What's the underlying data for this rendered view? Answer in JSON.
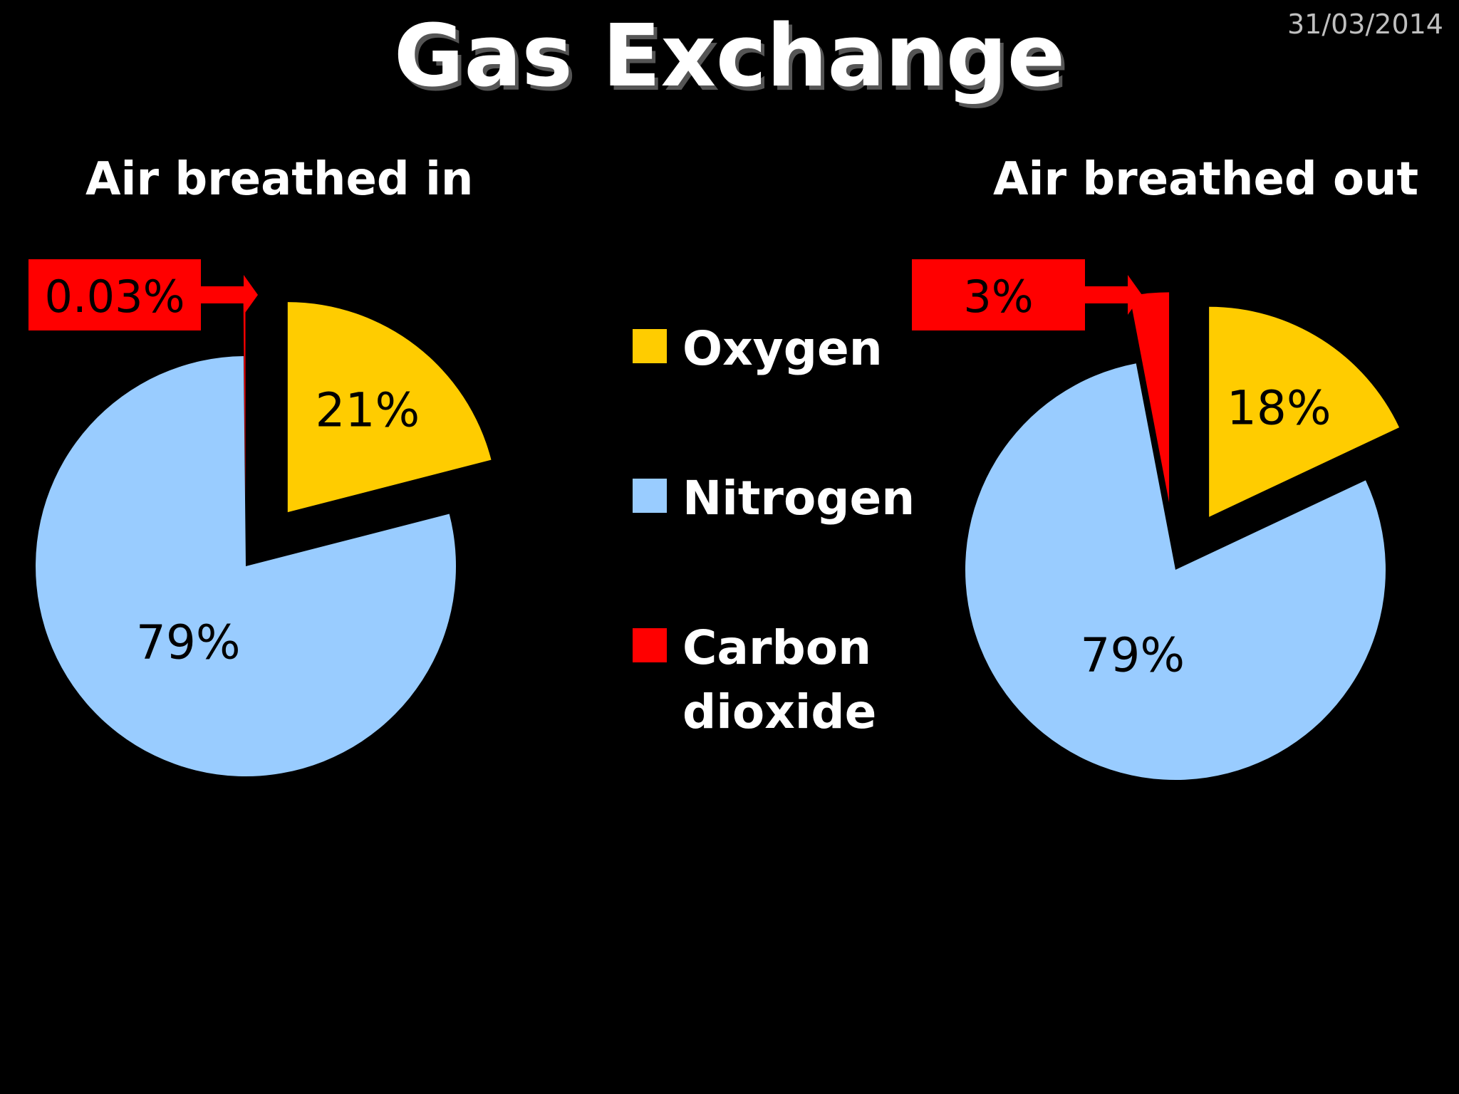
{
  "slide": {
    "title": "Gas Exchange",
    "date": "31/03/2014"
  },
  "chart_data": [
    {
      "type": "pie",
      "title": "Air breathed in",
      "slices": [
        {
          "name": "Oxygen",
          "value": 21,
          "label": "21%",
          "color": "#ffcc00"
        },
        {
          "name": "Nitrogen",
          "value": 79,
          "label": "79%",
          "color": "#99ccff"
        },
        {
          "name": "Carbon dioxide",
          "value": 0.03,
          "label": "0.03%",
          "color": "#ff0000"
        }
      ],
      "callout": {
        "label": "0.03%",
        "slice": "Carbon dioxide"
      }
    },
    {
      "type": "pie",
      "title": "Air breathed out",
      "slices": [
        {
          "name": "Oxygen",
          "value": 18,
          "label": "18%",
          "color": "#ffcc00"
        },
        {
          "name": "Nitrogen",
          "value": 79,
          "label": "79%",
          "color": "#99ccff"
        },
        {
          "name": "Carbon dioxide",
          "value": 3,
          "label": "3%",
          "color": "#ff0000"
        }
      ],
      "callout": {
        "label": "3%",
        "slice": "Carbon dioxide"
      }
    }
  ],
  "legend": {
    "items": [
      {
        "name": "Oxygen",
        "color": "#ffcc00"
      },
      {
        "name": "Nitrogen",
        "color": "#99ccff"
      },
      {
        "name": "Carbon",
        "name2": "dioxide",
        "color": "#ff0000"
      }
    ]
  }
}
